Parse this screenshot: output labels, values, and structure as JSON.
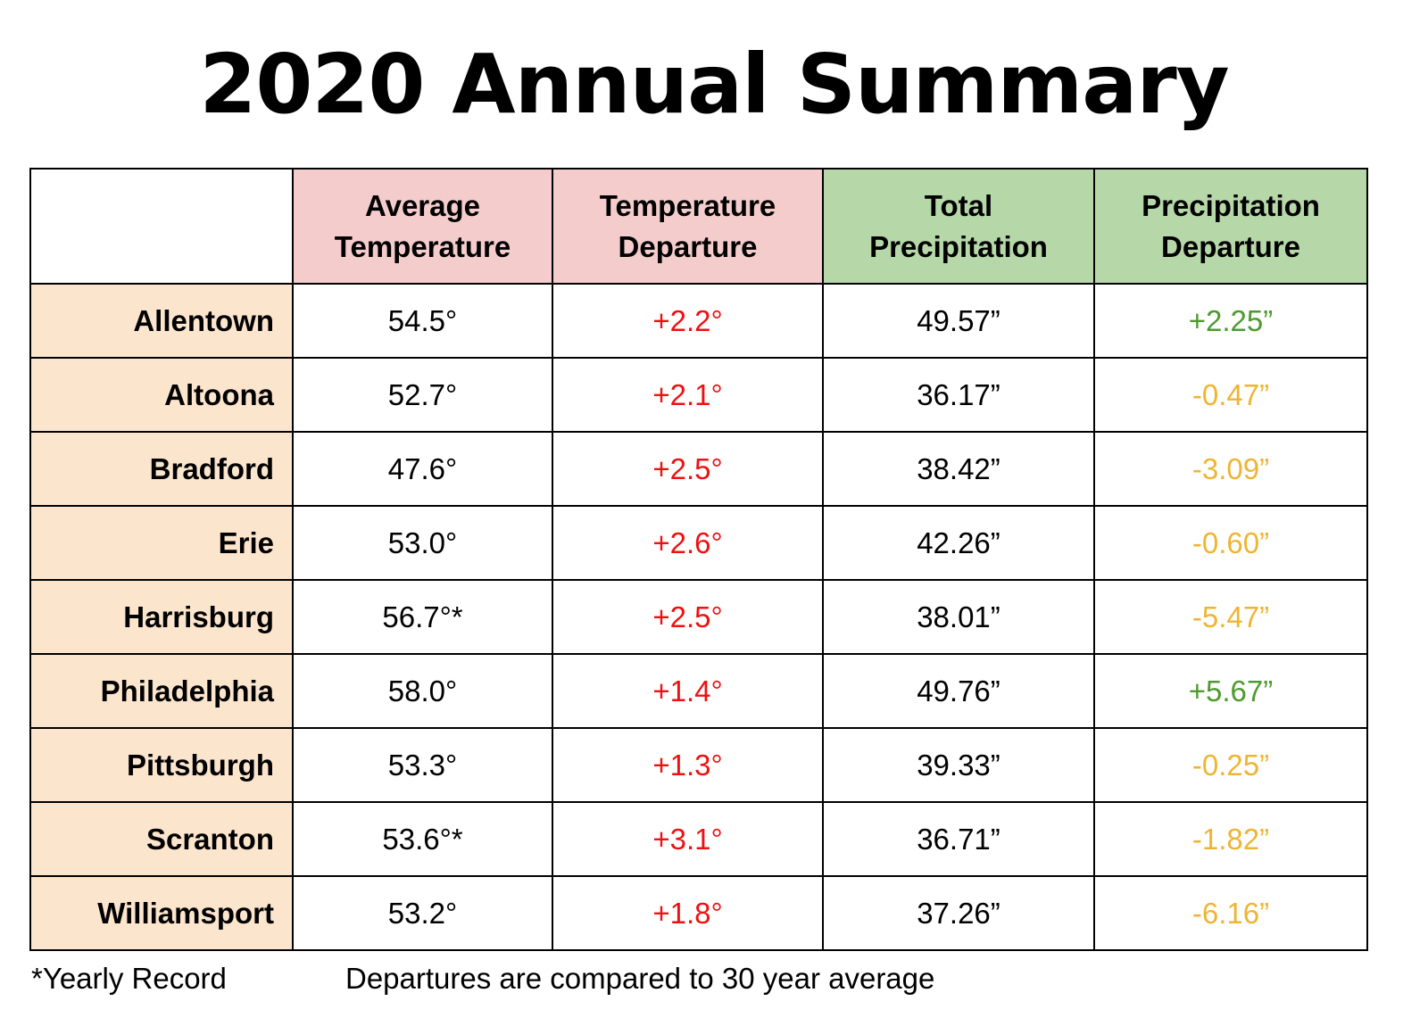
{
  "title": "2020 Annual Summary",
  "headers": {
    "avg_temp": [
      "Average",
      "Temperature"
    ],
    "temp_dep": [
      "Temperature",
      "Departure"
    ],
    "total_precip": [
      "Total",
      "Precipitation"
    ],
    "precip_dep": [
      "Precipitation",
      "Departure"
    ]
  },
  "rows": [
    {
      "city": "Allentown",
      "avg_temp": "54.5°",
      "temp_dep": "+2.2°",
      "total_precip": "49.57”",
      "precip_dep": "+2.25”",
      "precip_dep_status": "green"
    },
    {
      "city": "Altoona",
      "avg_temp": "52.7°",
      "temp_dep": "+2.1°",
      "total_precip": "36.17”",
      "precip_dep": "-0.47”",
      "precip_dep_status": "amber"
    },
    {
      "city": "Bradford",
      "avg_temp": "47.6°",
      "temp_dep": "+2.5°",
      "total_precip": "38.42”",
      "precip_dep": "-3.09”",
      "precip_dep_status": "amber"
    },
    {
      "city": "Erie",
      "avg_temp": "53.0°",
      "temp_dep": "+2.6°",
      "total_precip": "42.26”",
      "precip_dep": "-0.60”",
      "precip_dep_status": "amber"
    },
    {
      "city": "Harrisburg",
      "avg_temp": "56.7°*",
      "temp_dep": "+2.5°",
      "total_precip": "38.01”",
      "precip_dep": "-5.47”",
      "precip_dep_status": "amber"
    },
    {
      "city": "Philadelphia",
      "avg_temp": "58.0°",
      "temp_dep": "+1.4°",
      "total_precip": "49.76”",
      "precip_dep": "+5.67”",
      "precip_dep_status": "green"
    },
    {
      "city": "Pittsburgh",
      "avg_temp": "53.3°",
      "temp_dep": "+1.3°",
      "total_precip": "39.33”",
      "precip_dep": "-0.25”",
      "precip_dep_status": "amber"
    },
    {
      "city": "Scranton",
      "avg_temp": "53.6°*",
      "temp_dep": "+3.1°",
      "total_precip": "36.71”",
      "precip_dep": "-1.82”",
      "precip_dep_status": "amber"
    },
    {
      "city": "Williamsport",
      "avg_temp": "53.2°",
      "temp_dep": "+1.8°",
      "total_precip": "37.26”",
      "precip_dep": "-6.16”",
      "precip_dep_status": "amber"
    }
  ],
  "footer": {
    "record_note": "*Yearly Record",
    "departure_note": "Departures are compared to 30 year average"
  },
  "colors": {
    "temp_header_bg": "#f4cccc",
    "precip_header_bg": "#b6d7a8",
    "city_bg": "#fce5cd",
    "temp_departure_text": "#ee1111",
    "precip_positive_text": "#4e9a2e",
    "precip_negative_text": "#eeb534"
  }
}
